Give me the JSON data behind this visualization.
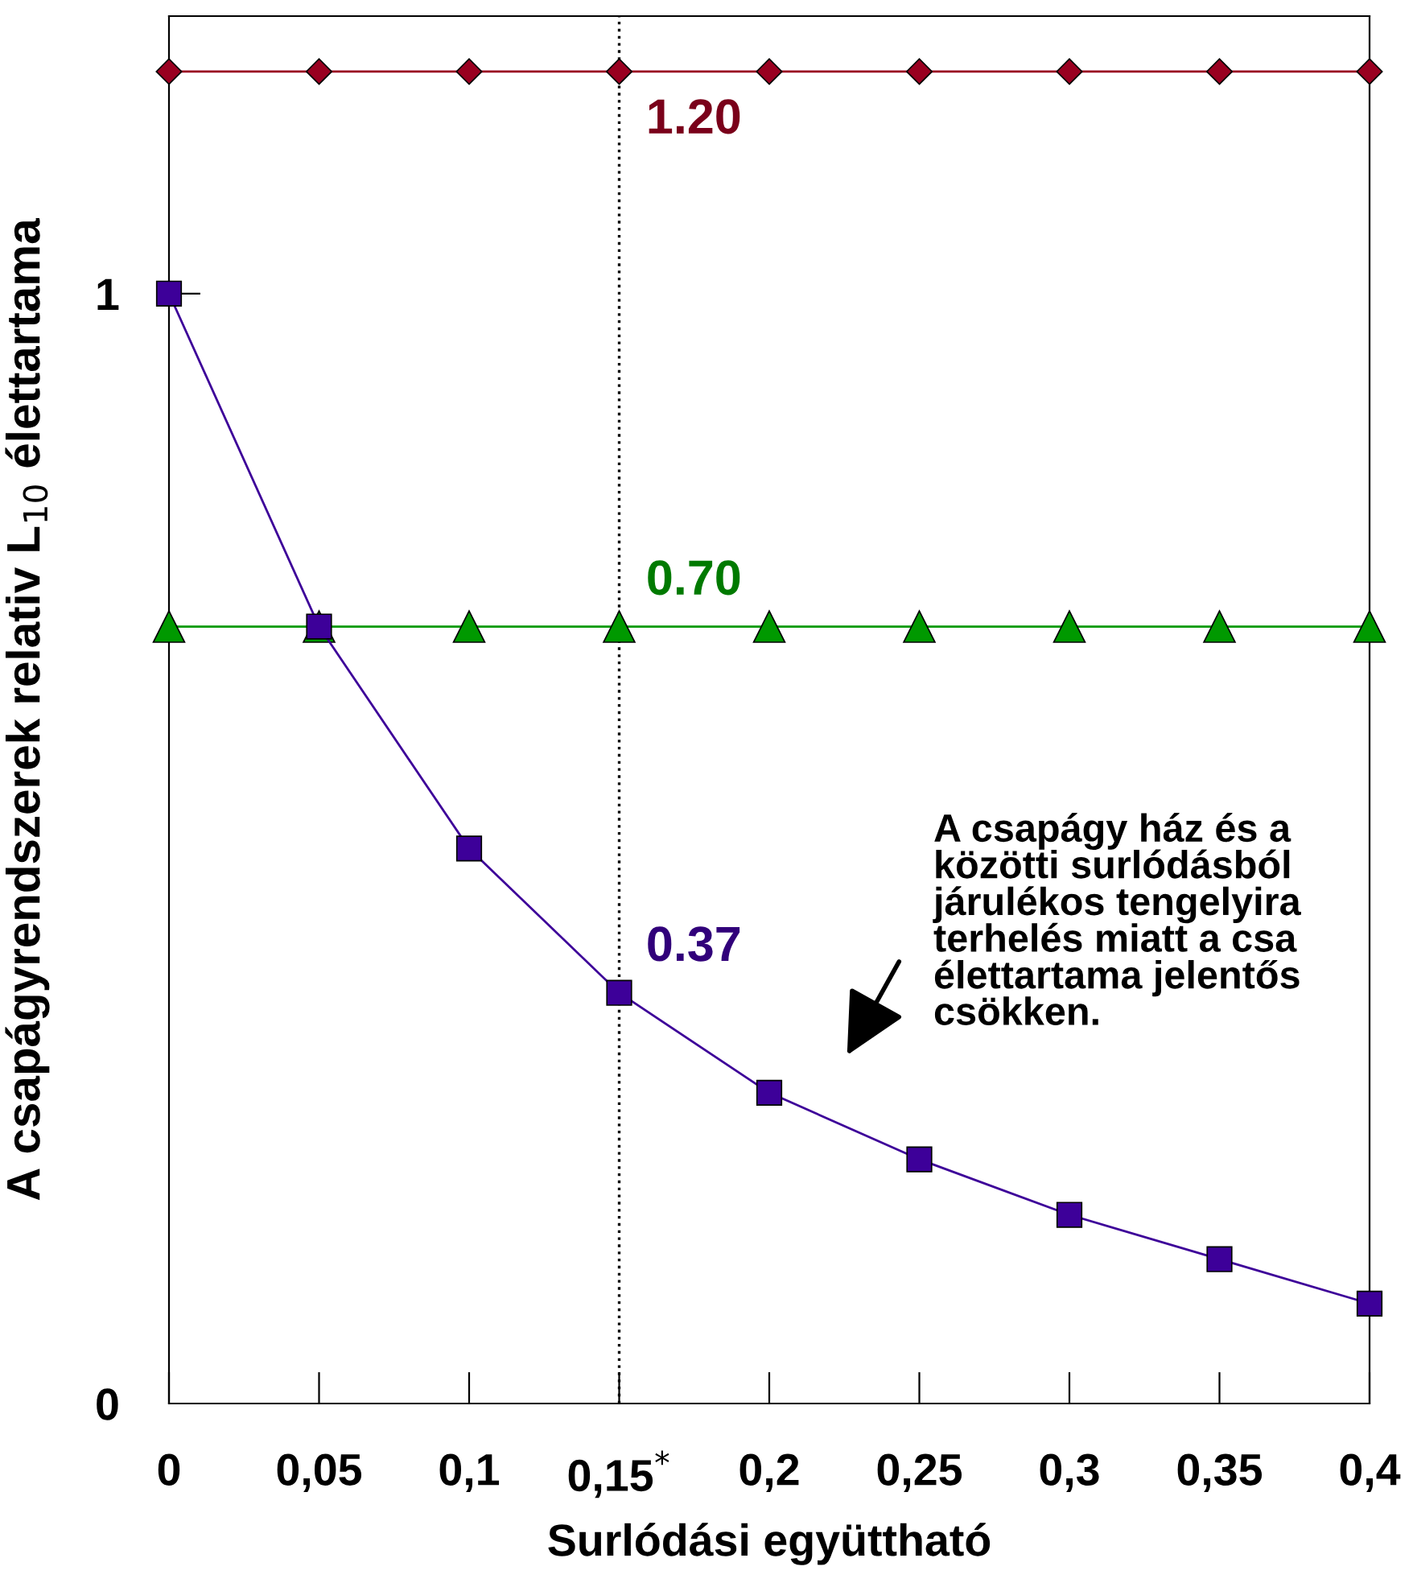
{
  "chart_data": {
    "type": "line",
    "xlabel": "Surlódási együttható",
    "ylabel": "A csapágyrendszerek relativ L$_{10}$ élettartama",
    "x": [
      0,
      0.05,
      0.1,
      0.15,
      0.2,
      0.25,
      0.3,
      0.35,
      0.4
    ],
    "series": [
      {
        "color": "#990020",
        "marker": "diamond",
        "values": [
          1.2,
          1.2,
          1.2,
          1.2,
          1.2,
          1.2,
          1.2,
          1.2,
          1.2
        ],
        "value_labels": [
          null,
          null,
          null,
          "1.20",
          null,
          null,
          null,
          null,
          null
        ]
      },
      {
        "color": "#009900",
        "marker": "triangle",
        "values": [
          0.7,
          0.7,
          0.7,
          0.7,
          0.7,
          0.7,
          0.7,
          0.7,
          0.7
        ],
        "value_labels": [
          null,
          null,
          null,
          "0.70",
          null,
          null,
          null,
          null,
          null
        ]
      },
      {
        "color": "#3d0099",
        "marker": "square",
        "values": [
          1.0,
          0.7,
          0.5,
          0.37,
          0.28,
          0.22,
          0.17,
          0.13,
          0.09
        ],
        "value_labels": [
          null,
          null,
          null,
          "0.37",
          null,
          null,
          null,
          null,
          null
        ]
      }
    ],
    "xlim": [
      0,
      0.4
    ],
    "xticks": [
      0,
      {
        "value": 0.05,
        "label": "0,05"
      },
      {
        "value": 0.1,
        "label": "0,1"
      },
      {
        "value": 0.15,
        "label": "0,15$^{*}$"
      },
      {
        "value": 0.2,
        "label": "0,2"
      },
      {
        "value": 0.25,
        "label": "0,25"
      },
      {
        "value": 0.3,
        "label": "0,3"
      },
      {
        "value": 0.35,
        "label": "0,35"
      },
      {
        "value": 0.4,
        "label": "0,4"
      }
    ],
    "ylim": [
      0,
      1.25
    ],
    "yticks": [
      0,
      1
    ],
    "ref_lines": [
      {
        "axis": "x",
        "value": 0.15,
        "color": "#000000",
        "line_style": "dotted"
      }
    ],
    "annotations": [
      "A csapágy ház és a\nközötti surlódásból\njárulékos tengelyira\nterhelés miatt a csa\nélettartama jelentős\ncsökken."
    ],
    "grid": false,
    "legend": false
  }
}
